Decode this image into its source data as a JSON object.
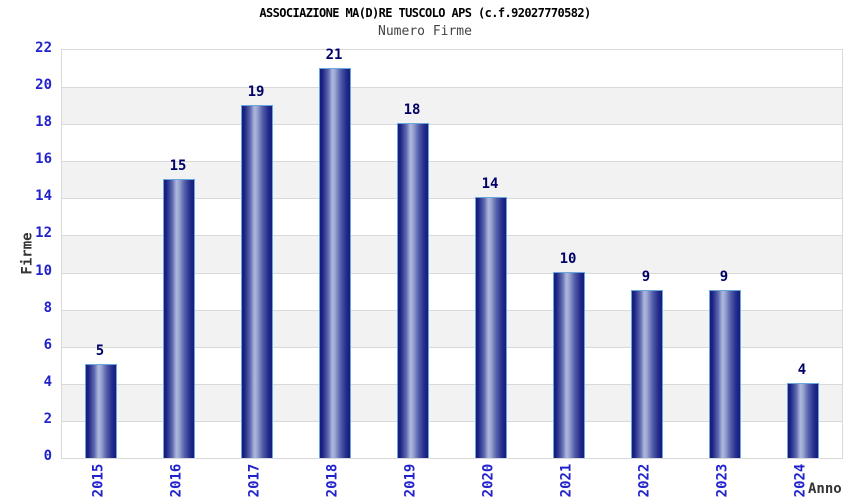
{
  "chart_data": {
    "type": "bar",
    "title": "ASSOCIAZIONE MA(D)RE TUSCOLO APS (c.f.92027770582)",
    "subtitle": "Numero Firme",
    "xlabel": "Anno",
    "ylabel": "Firme",
    "categories": [
      "2015",
      "2016",
      "2017",
      "2018",
      "2019",
      "2020",
      "2021",
      "2022",
      "2023",
      "2024"
    ],
    "values": [
      5,
      15,
      19,
      21,
      18,
      14,
      10,
      9,
      9,
      4
    ],
    "ylim": [
      0,
      22
    ],
    "ytick_step": 2,
    "grid": true,
    "legend": "none",
    "band_fill": "alternating horizontal bands every 2 units",
    "bar_labels_shown": true
  },
  "colors": {
    "background": "#ffffff",
    "title_text": "#000000",
    "subtitle_text": "#444444",
    "axis_title_text": "#333333",
    "tick_label_blue": "#2222cc",
    "bar_value_navy": "#000066",
    "band_gray": "#f2f2f2",
    "gridline_gray": "#d9d9d9",
    "bar_edge_dark": "#141c7c",
    "bar_center_light": "#aeb7dc",
    "bar_outline_lightblue": "#6aa5dc"
  }
}
